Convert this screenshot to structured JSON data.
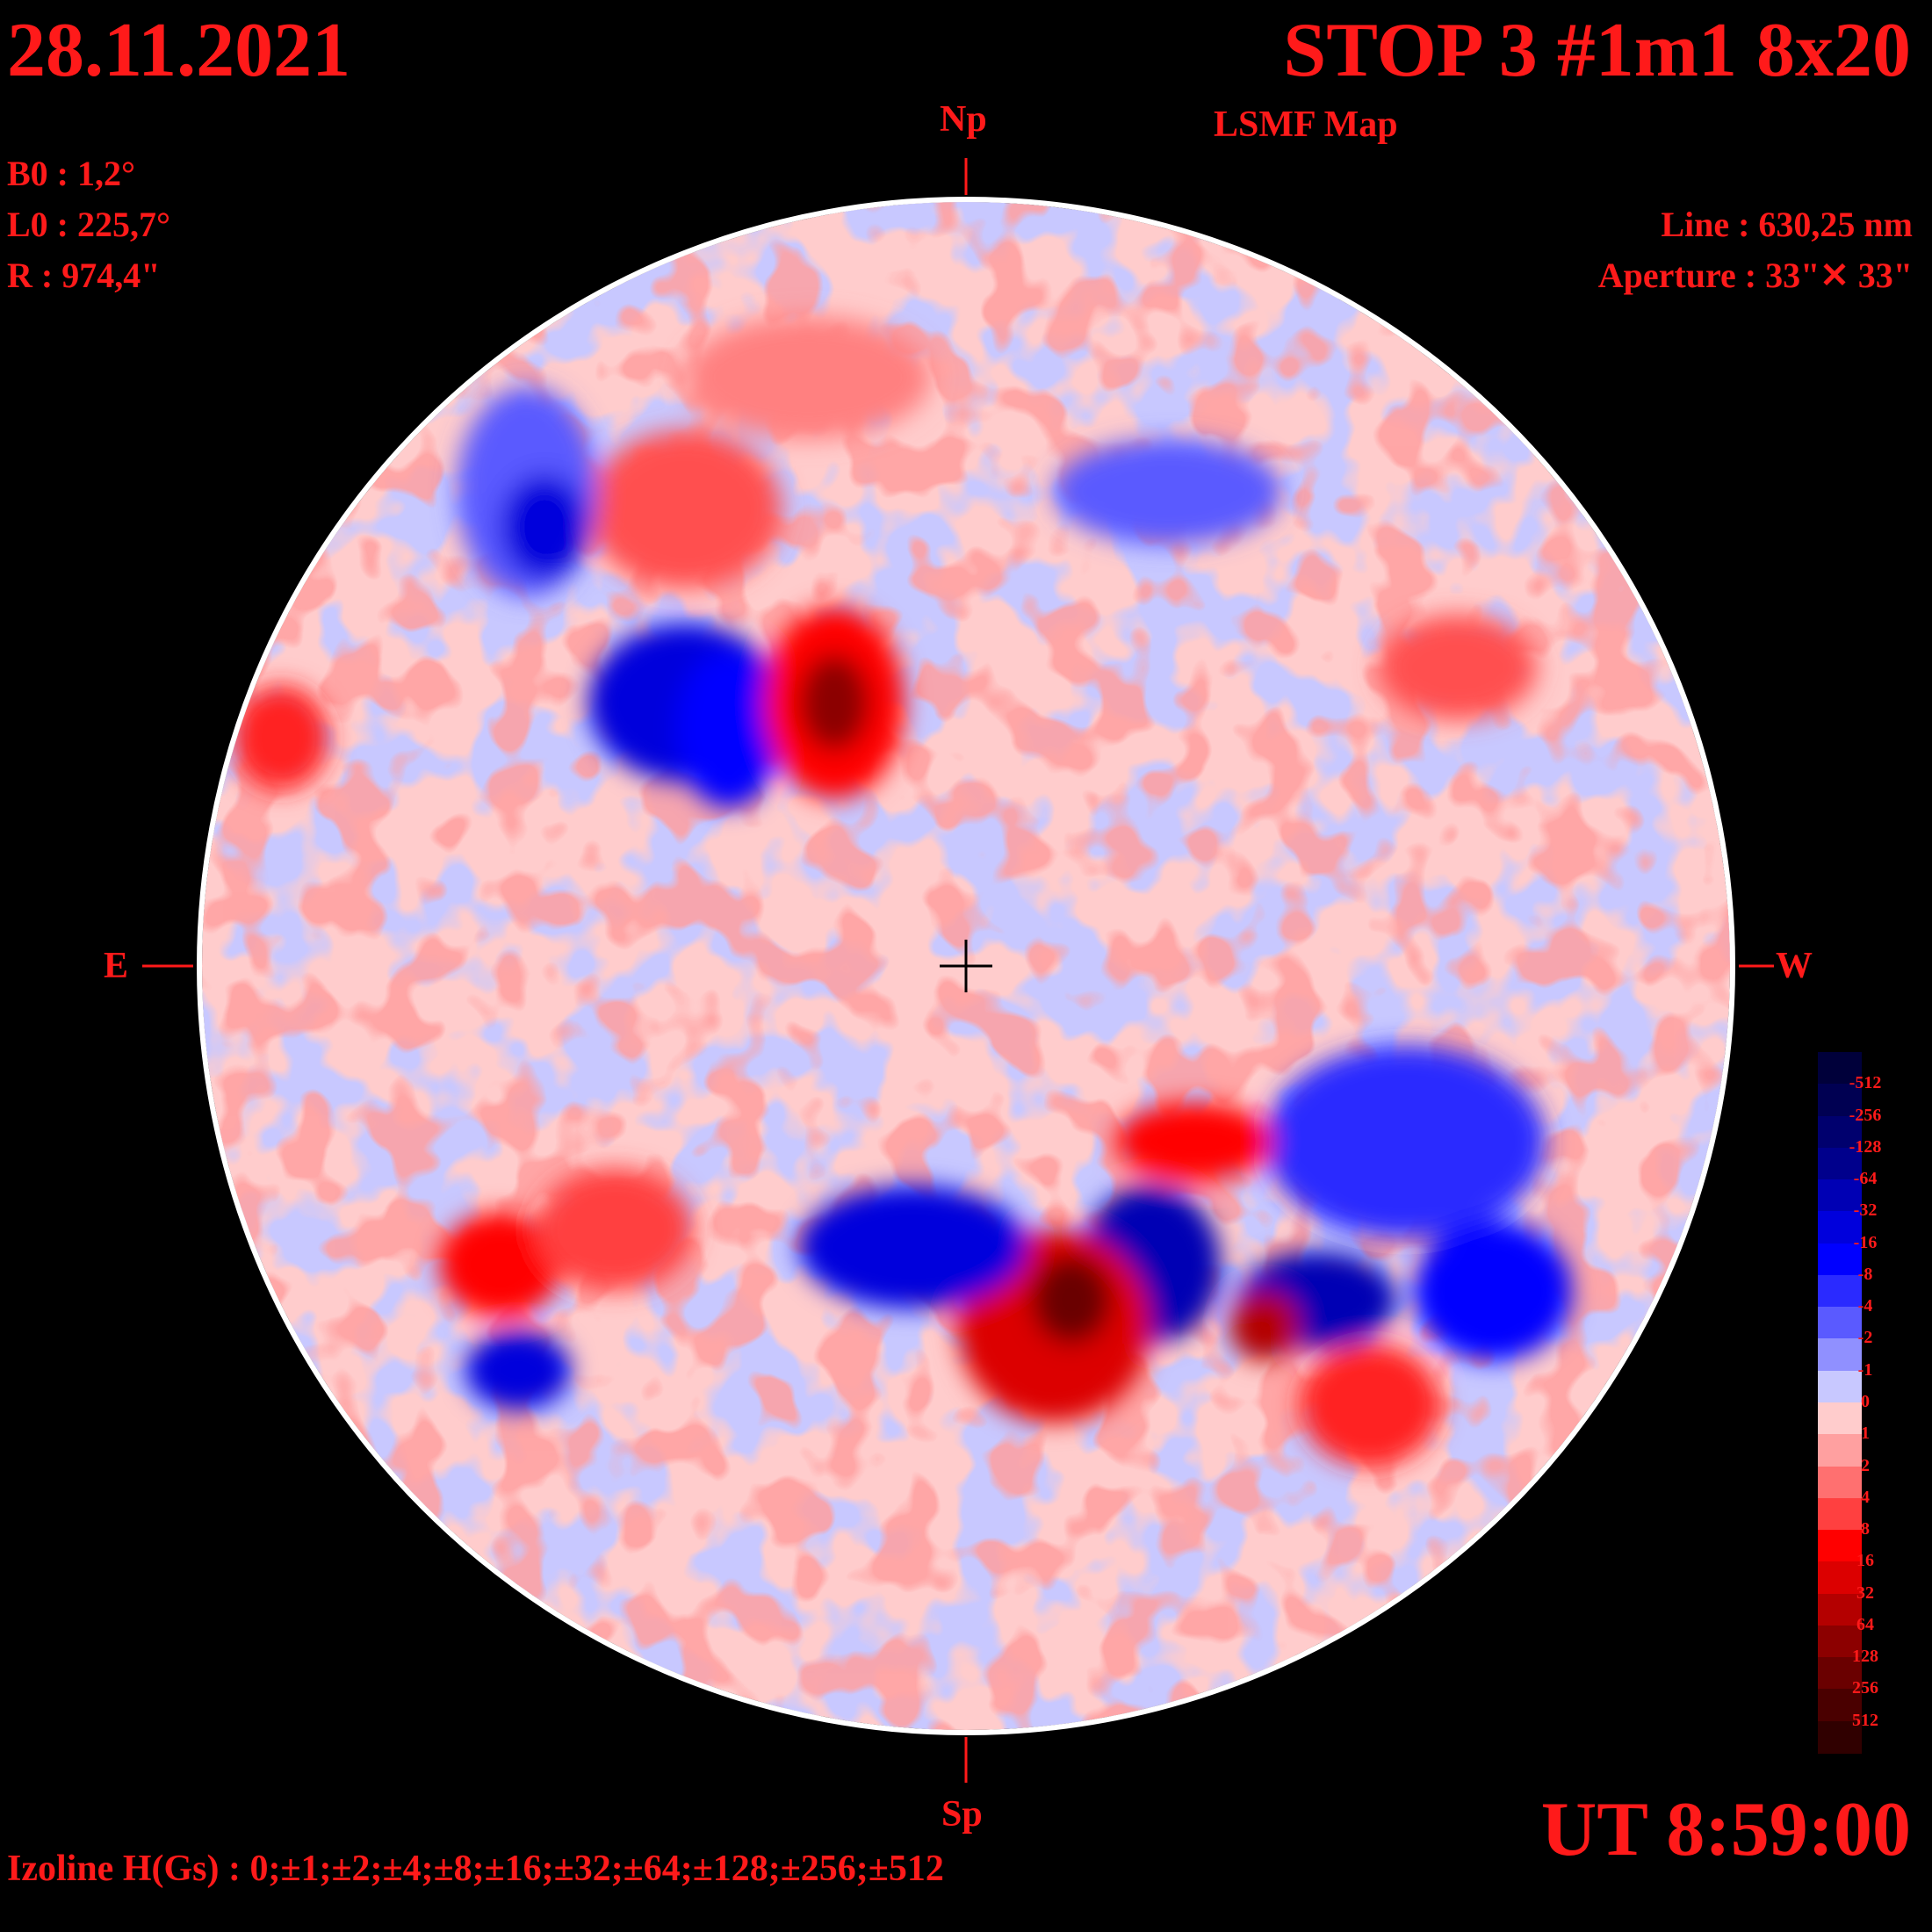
{
  "header": {
    "date": "28.11.2021",
    "title": "STOP 3 #1m1 8x20",
    "subtitle": "LSMF  Map"
  },
  "params": {
    "b0": "B0 : 1,2°",
    "l0": "L0 : 225,7°",
    "r": "R  : 974,4\""
  },
  "instrument": {
    "line": "Line :  630,25 nm",
    "aperture": "Aperture : 33\"✕ 33\""
  },
  "directions": {
    "north": "Np",
    "south": "Sp",
    "east": "E",
    "west": "W"
  },
  "time": "UT 8:59:00",
  "izoline": "Izoline H(Gs) : 0;±1;±2;±4;±8;±16;±32;±64;±128;±256;±512",
  "colorbar": {
    "labels": [
      "-512",
      "-256",
      "-128",
      "-64",
      "-32",
      "-16",
      "-8",
      "-4",
      "-2",
      "-1",
      "0",
      "1",
      "2",
      "4",
      "8",
      "16",
      "32",
      "64",
      "128",
      "256",
      "512"
    ],
    "colors": [
      "#00003a",
      "#000052",
      "#00006e",
      "#00008c",
      "#0000b4",
      "#0000dc",
      "#0000ff",
      "#2a2aff",
      "#5a5aff",
      "#9090ff",
      "#c8c8ff",
      "#ffcccc",
      "#ffa0a0",
      "#ff7070",
      "#ff4040",
      "#ff0000",
      "#dc0000",
      "#b40000",
      "#8c0000",
      "#6a0000",
      "#4a0000",
      "#300000"
    ]
  },
  "colors": {
    "text": "#ff1a1a",
    "background": "#000000",
    "disk_rim": "#ffffff"
  }
}
